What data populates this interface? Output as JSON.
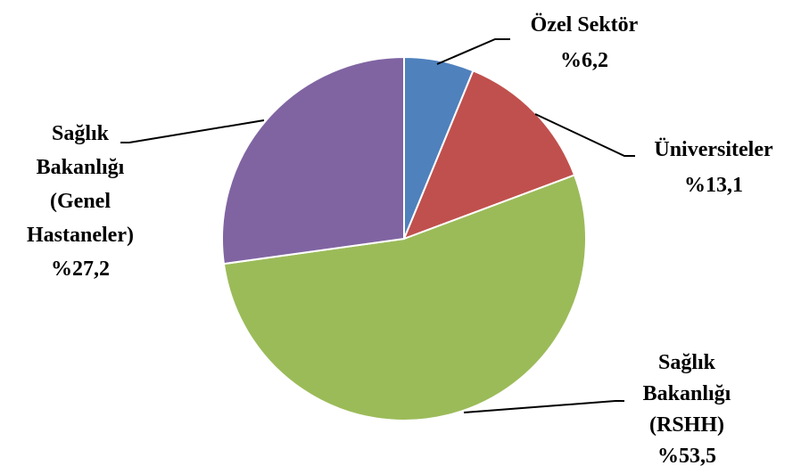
{
  "chart_data": {
    "type": "pie",
    "categories": [
      "Özel Sektör",
      "Üniversiteler",
      "Sağlık\nBakanlığı\n(RSHH)",
      "Sağlık\nBakanlığı\n(Genel\nHastaneler)"
    ],
    "values": [
      6.2,
      13.1,
      53.5,
      27.2
    ],
    "value_labels": [
      "%6,2",
      "%13,1",
      "%53,5",
      "%27,2"
    ],
    "colors": [
      "#4f81bd",
      "#c0504d",
      "#9bbb59",
      "#8064a2"
    ]
  }
}
